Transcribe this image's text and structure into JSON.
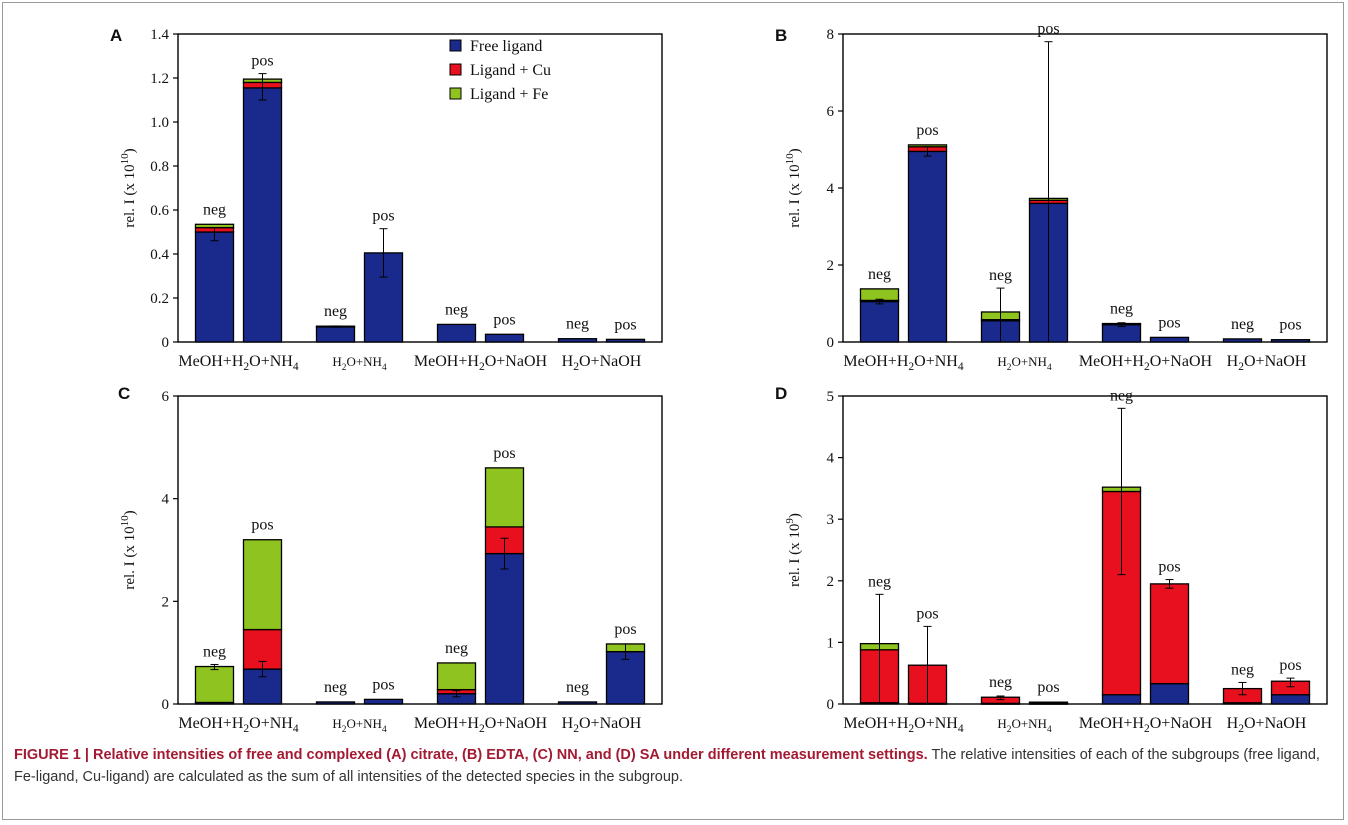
{
  "legend": [
    {
      "label": "Free ligand",
      "color": "#1a2a8c"
    },
    {
      "label": "Ligand + Cu",
      "color": "#e8101e"
    },
    {
      "label": "Ligand + Fe",
      "color": "#8fc31f"
    }
  ],
  "caption": {
    "bold": "FIGURE 1 | Relative intensities of free and complexed (A) citrate, (B) EDTA, (C) NN, and (D) SA under different measurement settings.",
    "rest": " The relative intensities of each of the subgroups (free ligand, Fe-ligand, Cu-ligand) are calculated as the sum of all intensities of the detected species in the subgroup."
  },
  "chart_data": [
    {
      "panel": "A",
      "type": "bar",
      "ylabel": "rel. I (x 10",
      "ylabel_exp": "10",
      "ylim": [
        0,
        1.4
      ],
      "yticks": [
        "0",
        "0.2",
        "0.4",
        "0.6",
        "0.8",
        "1.0",
        "1.2",
        "1.4"
      ],
      "groups": [
        "MeOH+H2O+NH4",
        "H2O+NH4",
        "MeOH+H2O+NaOH",
        "H2O+NaOH"
      ],
      "bars": [
        {
          "label": "neg",
          "group": 0,
          "free": 0.5,
          "cu": 0.02,
          "fe": 0.015,
          "err": [
            0.49,
            0.03
          ]
        },
        {
          "label": "pos",
          "group": 0,
          "free": 1.155,
          "cu": 0.025,
          "fe": 0.015,
          "err": [
            1.16,
            0.06
          ]
        },
        {
          "label": "neg",
          "group": 1,
          "free": 0.07,
          "cu": 0,
          "fe": 0.002,
          "err": [
            0.07,
            0.003
          ]
        },
        {
          "label": "pos",
          "group": 1,
          "free": 0.405,
          "cu": 0,
          "fe": 0,
          "err": [
            0.405,
            0.11
          ]
        },
        {
          "label": "neg",
          "group": 2,
          "free": 0.08,
          "cu": 0,
          "fe": 0,
          "err": null
        },
        {
          "label": "pos",
          "group": 2,
          "free": 0.035,
          "cu": 0,
          "fe": 0,
          "err": null
        },
        {
          "label": "neg",
          "group": 3,
          "free": 0.015,
          "cu": 0,
          "fe": 0,
          "err": null
        },
        {
          "label": "pos",
          "group": 3,
          "free": 0.012,
          "cu": 0,
          "fe": 0,
          "err": null
        }
      ]
    },
    {
      "panel": "B",
      "type": "bar",
      "ylabel": "rel. I (x 10",
      "ylabel_exp": "10",
      "ylim": [
        0,
        8
      ],
      "yticks": [
        "0",
        "2",
        "4",
        "6",
        "8"
      ],
      "groups": [
        "MeOH+H2O+NH4",
        "H2O+NH4",
        "MeOH+H2O+NaOH",
        "H2O+NaOH"
      ],
      "bars": [
        {
          "label": "neg",
          "group": 0,
          "free": 1.05,
          "cu": 0.03,
          "fe": 0.3,
          "err": [
            1.05,
            0.06
          ]
        },
        {
          "label": "pos",
          "group": 0,
          "free": 4.95,
          "cu": 0.12,
          "fe": 0.05,
          "err": [
            4.95,
            0.12
          ]
        },
        {
          "label": "neg",
          "group": 1,
          "free": 0.55,
          "cu": 0.03,
          "fe": 0.2,
          "err": [
            0.6,
            0.8
          ]
        },
        {
          "label": "pos",
          "group": 1,
          "free": 3.6,
          "cu": 0.08,
          "fe": 0.05,
          "err": [
            3.6,
            4.2
          ]
        },
        {
          "label": "neg",
          "group": 2,
          "free": 0.45,
          "cu": 0,
          "fe": 0.03,
          "err": [
            0.45,
            0.05
          ]
        },
        {
          "label": "pos",
          "group": 2,
          "free": 0.12,
          "cu": 0,
          "fe": 0,
          "err": null
        },
        {
          "label": "neg",
          "group": 3,
          "free": 0.08,
          "cu": 0,
          "fe": 0,
          "err": null
        },
        {
          "label": "pos",
          "group": 3,
          "free": 0.06,
          "cu": 0,
          "fe": 0,
          "err": null
        }
      ]
    },
    {
      "panel": "C",
      "type": "bar",
      "ylabel": "rel. I (x 10",
      "ylabel_exp": "10",
      "ylim": [
        0,
        6
      ],
      "yticks": [
        "0",
        "2",
        "4",
        "6"
      ],
      "groups": [
        "MeOH+H2O+NH4",
        "H2O+NH4",
        "MeOH+H2O+NaOH",
        "H2O+NaOH"
      ],
      "bars": [
        {
          "label": "neg",
          "group": 0,
          "free": 0.03,
          "cu": 0,
          "fe": 0.7,
          "err": [
            0.72,
            0.05
          ]
        },
        {
          "label": "pos",
          "group": 0,
          "free": 0.68,
          "cu": 0.77,
          "fe": 1.75,
          "err": [
            0.68,
            0.15
          ]
        },
        {
          "label": "neg",
          "group": 1,
          "free": 0.04,
          "cu": 0,
          "fe": 0,
          "err": null
        },
        {
          "label": "pos",
          "group": 1,
          "free": 0.09,
          "cu": 0,
          "fe": 0,
          "err": null
        },
        {
          "label": "neg",
          "group": 2,
          "free": 0.2,
          "cu": 0.08,
          "fe": 0.52,
          "err": [
            0.2,
            0.06
          ]
        },
        {
          "label": "pos",
          "group": 2,
          "free": 2.93,
          "cu": 0.52,
          "fe": 1.15,
          "err": [
            2.93,
            0.3
          ]
        },
        {
          "label": "neg",
          "group": 3,
          "free": 0.04,
          "cu": 0,
          "fe": 0,
          "err": null
        },
        {
          "label": "pos",
          "group": 3,
          "free": 1.02,
          "cu": 0,
          "fe": 0.15,
          "err": [
            1.02,
            0.15
          ]
        }
      ]
    },
    {
      "panel": "D",
      "type": "bar",
      "ylabel": "rel. I (x 10",
      "ylabel_exp": "9",
      "ylim": [
        0,
        5
      ],
      "yticks": [
        "0",
        "1",
        "2",
        "3",
        "4",
        "5"
      ],
      "groups": [
        "MeOH+H2O+NH4",
        "H2O+NH4",
        "MeOH+H2O+NaOH",
        "H2O+NaOH"
      ],
      "bars": [
        {
          "label": "neg",
          "group": 0,
          "free": 0.02,
          "cu": 0.86,
          "fe": 0.1,
          "err": [
            0.88,
            0.9
          ]
        },
        {
          "label": "pos",
          "group": 0,
          "free": 0.01,
          "cu": 0.62,
          "fe": 0,
          "err": [
            0.63,
            0.63
          ]
        },
        {
          "label": "neg",
          "group": 1,
          "free": 0.01,
          "cu": 0.1,
          "fe": 0,
          "err": [
            0.1,
            0.03
          ]
        },
        {
          "label": "pos",
          "group": 1,
          "free": 0.01,
          "cu": 0.02,
          "fe": 0,
          "err": null
        },
        {
          "label": "neg",
          "group": 2,
          "free": 0.15,
          "cu": 3.3,
          "fe": 0.07,
          "err": [
            3.45,
            1.35
          ]
        },
        {
          "label": "pos",
          "group": 2,
          "free": 0.33,
          "cu": 1.62,
          "fe": 0,
          "err": [
            1.95,
            0.07
          ]
        },
        {
          "label": "neg",
          "group": 3,
          "free": 0.02,
          "cu": 0.23,
          "fe": 0,
          "err": [
            0.25,
            0.1
          ]
        },
        {
          "label": "pos",
          "group": 3,
          "free": 0.15,
          "cu": 0.22,
          "fe": 0,
          "err": [
            0.35,
            0.07
          ]
        }
      ]
    }
  ]
}
